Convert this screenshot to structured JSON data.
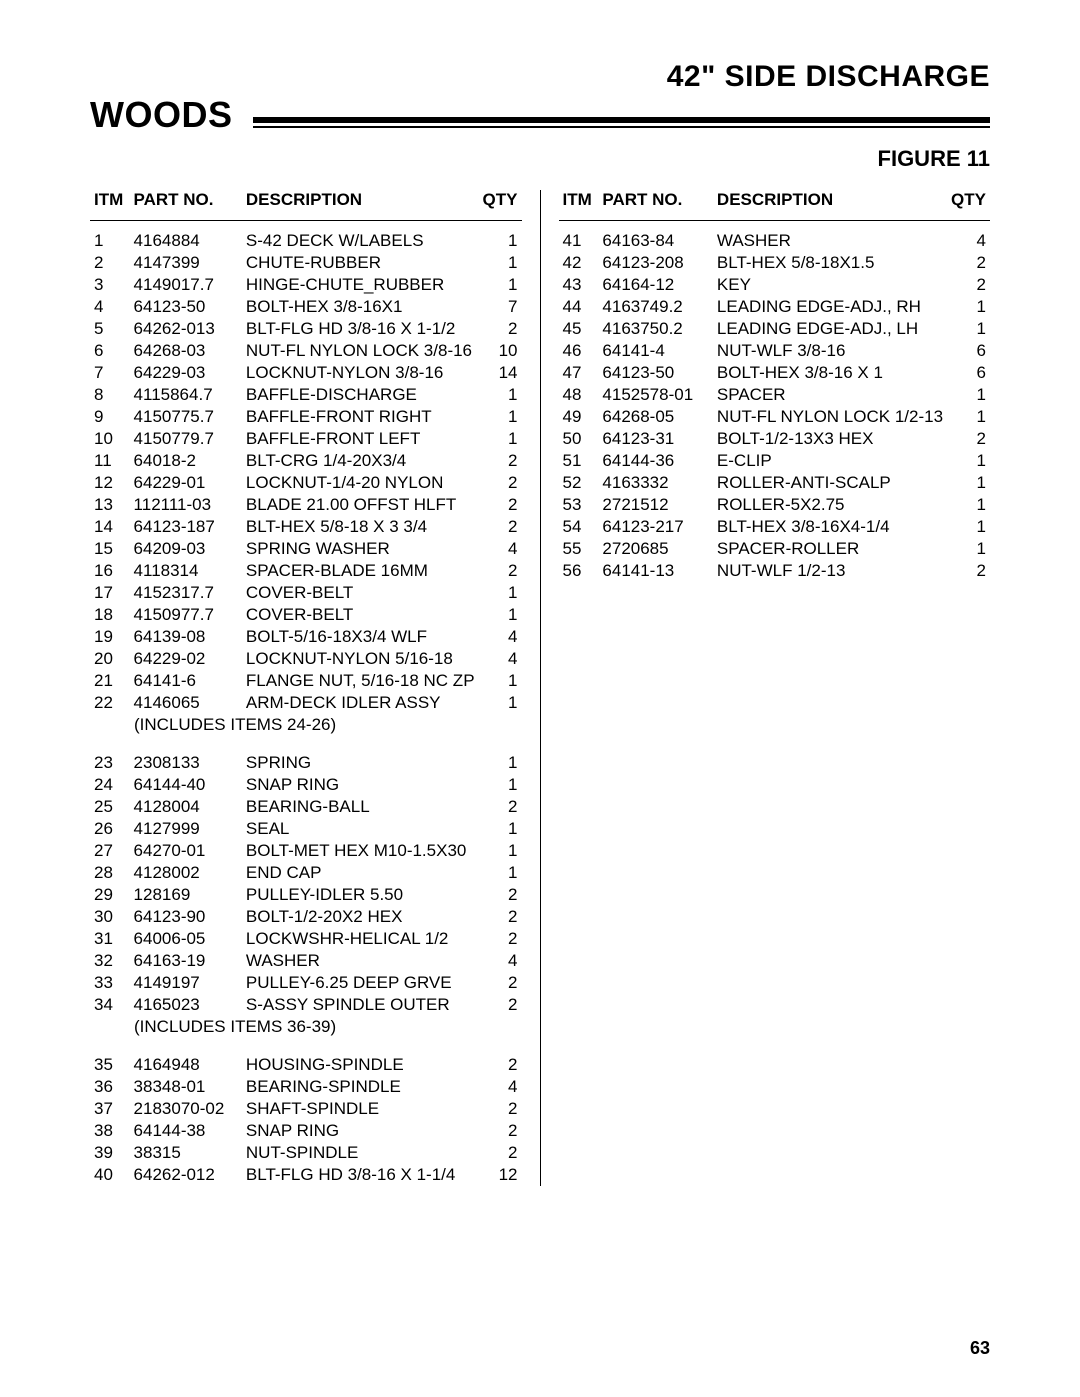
{
  "brand": "WOODS",
  "product_title": "42\" SIDE DISCHARGE",
  "figure_label": "FIGURE 11",
  "page_number": "63",
  "headers": {
    "itm": "ITM",
    "part": "PART NO.",
    "desc": "DESCRIPTION",
    "qty": "QTY"
  },
  "left": [
    {
      "itm": "1",
      "part": "4164884",
      "desc": "S-42 DECK W/LABELS",
      "qty": "1"
    },
    {
      "itm": "2",
      "part": "4147399",
      "desc": "CHUTE-RUBBER",
      "qty": "1"
    },
    {
      "itm": "3",
      "part": "4149017.7",
      "desc": "HINGE-CHUTE_RUBBER",
      "qty": "1"
    },
    {
      "itm": "4",
      "part": "64123-50",
      "desc": "BOLT-HEX 3/8-16X1",
      "qty": "7"
    },
    {
      "itm": "5",
      "part": "64262-013",
      "desc": "BLT-FLG HD 3/8-16 X 1-1/2",
      "qty": "2"
    },
    {
      "itm": "6",
      "part": "64268-03",
      "desc": "NUT-FL NYLON LOCK 3/8-16",
      "qty": "10"
    },
    {
      "itm": "7",
      "part": "64229-03",
      "desc": "LOCKNUT-NYLON 3/8-16",
      "qty": "14"
    },
    {
      "itm": "8",
      "part": "4115864.7",
      "desc": "BAFFLE-DISCHARGE",
      "qty": "1"
    },
    {
      "itm": "9",
      "part": "4150775.7",
      "desc": "BAFFLE-FRONT RIGHT",
      "qty": "1"
    },
    {
      "itm": "10",
      "part": "4150779.7",
      "desc": "BAFFLE-FRONT LEFT",
      "qty": "1"
    },
    {
      "itm": "11",
      "part": "64018-2",
      "desc": "BLT-CRG 1/4-20X3/4",
      "qty": "2"
    },
    {
      "itm": "12",
      "part": "64229-01",
      "desc": "LOCKNUT-1/4-20 NYLON",
      "qty": "2"
    },
    {
      "itm": "13",
      "part": "112111-03",
      "desc": "BLADE 21.00 OFFST HLFT",
      "qty": "2"
    },
    {
      "itm": "14",
      "part": "64123-187",
      "desc": "BLT-HEX 5/8-18 X 3 3/4",
      "qty": "2"
    },
    {
      "itm": "15",
      "part": "64209-03",
      "desc": "SPRING WASHER",
      "qty": "4"
    },
    {
      "itm": "16",
      "part": "4118314",
      "desc": "SPACER-BLADE 16MM",
      "qty": "2"
    },
    {
      "itm": "17",
      "part": "4152317.7",
      "desc": "COVER-BELT",
      "qty": "1"
    },
    {
      "itm": "18",
      "part": "4150977.7",
      "desc": "COVER-BELT",
      "qty": "1"
    },
    {
      "itm": "19",
      "part": "64139-08",
      "desc": "BOLT-5/16-18X3/4 WLF",
      "qty": "4"
    },
    {
      "itm": "20",
      "part": "64229-02",
      "desc": "LOCKNUT-NYLON 5/16-18",
      "qty": "4"
    },
    {
      "itm": "21",
      "part": "64141-6",
      "desc": "FLANGE NUT, 5/16-18 NC ZP",
      "qty": "1"
    },
    {
      "itm": "22",
      "part": "4146065",
      "desc": "ARM-DECK IDLER ASSY",
      "qty": "1"
    },
    {
      "note": "(INCLUDES ITEMS 24-26)"
    },
    {
      "gap": true
    },
    {
      "itm": "23",
      "part": "2308133",
      "desc": "SPRING",
      "qty": "1"
    },
    {
      "itm": "24",
      "part": "64144-40",
      "desc": "SNAP RING",
      "qty": "1"
    },
    {
      "itm": "25",
      "part": "4128004",
      "desc": "BEARING-BALL",
      "qty": "2"
    },
    {
      "itm": "26",
      "part": "4127999",
      "desc": "SEAL",
      "qty": "1"
    },
    {
      "itm": "27",
      "part": "64270-01",
      "desc": "BOLT-MET HEX M10-1.5X30",
      "qty": "1"
    },
    {
      "itm": "28",
      "part": "4128002",
      "desc": "END CAP",
      "qty": "1"
    },
    {
      "itm": "29",
      "part": "128169",
      "desc": "PULLEY-IDLER 5.50",
      "qty": "2"
    },
    {
      "itm": "30",
      "part": "64123-90",
      "desc": "BOLT-1/2-20X2 HEX",
      "qty": "2"
    },
    {
      "itm": "31",
      "part": "64006-05",
      "desc": "LOCKWSHR-HELICAL 1/2",
      "qty": "2"
    },
    {
      "itm": "32",
      "part": "64163-19",
      "desc": "WASHER",
      "qty": "4"
    },
    {
      "itm": "33",
      "part": "4149197",
      "desc": "PULLEY-6.25 DEEP GRVE",
      "qty": "2"
    },
    {
      "itm": "34",
      "part": "4165023",
      "desc": "S-ASSY SPINDLE OUTER",
      "qty": "2"
    },
    {
      "note": "(INCLUDES ITEMS 36-39)"
    },
    {
      "gap": true
    },
    {
      "itm": "35",
      "part": "4164948",
      "desc": "HOUSING-SPINDLE",
      "qty": "2"
    },
    {
      "itm": "36",
      "part": "38348-01",
      "desc": "BEARING-SPINDLE",
      "qty": "4"
    },
    {
      "itm": "37",
      "part": "2183070-02",
      "desc": "SHAFT-SPINDLE",
      "qty": "2"
    },
    {
      "itm": "38",
      "part": "64144-38",
      "desc": "SNAP RING",
      "qty": "2"
    },
    {
      "itm": "39",
      "part": "38315",
      "desc": "NUT-SPINDLE",
      "qty": "2"
    },
    {
      "itm": "40",
      "part": "64262-012",
      "desc": "BLT-FLG HD 3/8-16 X 1-1/4",
      "qty": "12"
    }
  ],
  "right": [
    {
      "itm": "41",
      "part": "64163-84",
      "desc": "WASHER",
      "qty": "4"
    },
    {
      "itm": "42",
      "part": "64123-208",
      "desc": "BLT-HEX 5/8-18X1.5",
      "qty": "2"
    },
    {
      "itm": "43",
      "part": "64164-12",
      "desc": "KEY",
      "qty": "2"
    },
    {
      "itm": "44",
      "part": "4163749.2",
      "desc": "LEADING EDGE-ADJ., RH",
      "qty": "1"
    },
    {
      "itm": "45",
      "part": "4163750.2",
      "desc": "LEADING EDGE-ADJ., LH",
      "qty": "1"
    },
    {
      "itm": "46",
      "part": "64141-4",
      "desc": "NUT-WLF 3/8-16",
      "qty": "6"
    },
    {
      "itm": "47",
      "part": "64123-50",
      "desc": "BOLT-HEX 3/8-16 X  1",
      "qty": "6"
    },
    {
      "itm": "48",
      "part": "4152578-01",
      "desc": "SPACER",
      "qty": "1"
    },
    {
      "itm": "49",
      "part": "64268-05",
      "desc": "NUT-FL NYLON LOCK 1/2-13",
      "qty": "1"
    },
    {
      "itm": "50",
      "part": "64123-31",
      "desc": "BOLT-1/2-13X3 HEX",
      "qty": "2"
    },
    {
      "itm": "51",
      "part": "64144-36",
      "desc": "E-CLIP",
      "qty": "1"
    },
    {
      "itm": "52",
      "part": "4163332",
      "desc": "ROLLER-ANTI-SCALP",
      "qty": "1"
    },
    {
      "itm": "53",
      "part": "2721512",
      "desc": "ROLLER-5X2.75",
      "qty": "1"
    },
    {
      "itm": "54",
      "part": "64123-217",
      "desc": "BLT-HEX 3/8-16X4-1/4",
      "qty": "1"
    },
    {
      "itm": "55",
      "part": "2720685",
      "desc": "SPACER-ROLLER",
      "qty": "1"
    },
    {
      "itm": "56",
      "part": "64141-13",
      "desc": "NUT-WLF 1/2-13",
      "qty": "2"
    }
  ]
}
